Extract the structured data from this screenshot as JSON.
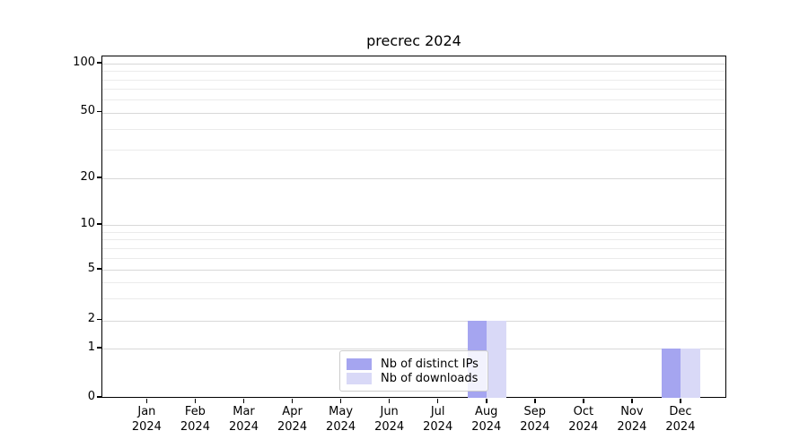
{
  "chart_data": {
    "type": "bar",
    "title": "precrec 2024",
    "categories": [
      "Jan",
      "Feb",
      "Mar",
      "Apr",
      "May",
      "Jun",
      "Jul",
      "Aug",
      "Sep",
      "Oct",
      "Nov",
      "Dec"
    ],
    "x_tick_second_line": "2024",
    "series": [
      {
        "name": "Nb of distinct IPs",
        "color": "#a5a5f0",
        "values": [
          0,
          0,
          0,
          0,
          0,
          0,
          0,
          2,
          0,
          0,
          0,
          1
        ]
      },
      {
        "name": "Nb of downloads",
        "color": "#d9d9f7",
        "values": [
          0,
          0,
          0,
          0,
          0,
          0,
          0,
          2,
          0,
          0,
          0,
          1
        ]
      }
    ],
    "y_ticks": [
      0,
      1,
      2,
      5,
      10,
      20,
      50,
      100
    ],
    "y_minor_ticks": [
      3,
      4,
      6,
      7,
      8,
      9,
      30,
      40,
      60,
      70,
      80,
      90
    ],
    "ylim": [
      0,
      110
    ],
    "scale": "log-like",
    "grid": "horizontal",
    "legend_position": "lower center",
    "colors": {
      "grid_major": "#d8d8d8",
      "grid_minor": "#ebebeb",
      "spine": "#000000",
      "background": "#ffffff"
    }
  }
}
